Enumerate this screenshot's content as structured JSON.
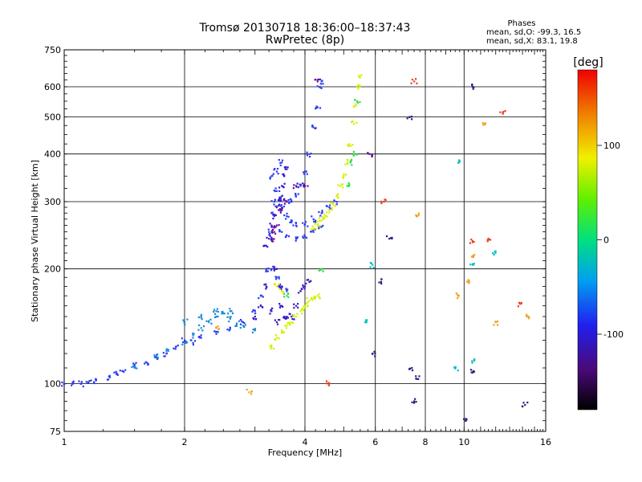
{
  "header": {
    "title_line1": "Tromsø 20130718 18:36:00–18:37:43",
    "title_line2": "RwPretec (8p)"
  },
  "stats": {
    "heading": "Phases",
    "o_line": "mean, sd,O: -99.3, 16.5",
    "x_line": "mean, sd,X:  83.1, 19.8"
  },
  "colorbar": {
    "label": "[deg]",
    "ticks": [
      {
        "value": 100,
        "label": "100"
      },
      {
        "value": 0,
        "label": "0"
      },
      {
        "value": -100,
        "label": "-100"
      }
    ],
    "range": [
      -180,
      180
    ]
  },
  "chart_data": {
    "type": "scatter",
    "title": "Tromsø 20130718 18:36:00–18:37:43",
    "subtitle": "RwPretec (8p)",
    "xlabel": "Frequency [MHz]",
    "ylabel": "Stationary phase Virtual Height [km]",
    "xscale": "log",
    "yscale": "log",
    "xlim": [
      1,
      16
    ],
    "ylim": [
      75,
      750
    ],
    "xticks": [
      1,
      2,
      4,
      6,
      8,
      10,
      16
    ],
    "yticks": [
      75,
      100,
      200,
      300,
      400,
      500,
      600,
      750
    ],
    "grid": true,
    "colorbar_label": "[deg]",
    "series": [
      {
        "phase_deg": -100,
        "color": "#2a3cf0",
        "points": [
          [
            1.0,
            100
          ],
          [
            1.05,
            100
          ],
          [
            1.1,
            100
          ],
          [
            1.15,
            101
          ],
          [
            1.2,
            102
          ],
          [
            1.3,
            104
          ],
          [
            1.35,
            106
          ],
          [
            1.4,
            108
          ],
          [
            1.5,
            112
          ],
          [
            1.6,
            114
          ],
          [
            1.7,
            117
          ],
          [
            1.8,
            120
          ],
          [
            1.9,
            125
          ],
          [
            2.0,
            130
          ],
          [
            2.1,
            128
          ],
          [
            2.2,
            132
          ],
          [
            2.4,
            135
          ],
          [
            2.6,
            140
          ],
          [
            2.8,
            145
          ],
          [
            3.0,
            155
          ],
          [
            3.1,
            170
          ],
          [
            3.2,
            200
          ],
          [
            3.25,
            250
          ],
          [
            3.3,
            280
          ],
          [
            3.35,
            300
          ],
          [
            3.4,
            320
          ],
          [
            3.5,
            310
          ],
          [
            3.6,
            300
          ],
          [
            3.7,
            300
          ],
          [
            3.8,
            310
          ],
          [
            3.9,
            330
          ],
          [
            4.0,
            360
          ],
          [
            4.1,
            400
          ],
          [
            4.2,
            470
          ],
          [
            4.3,
            530
          ],
          [
            4.35,
            600
          ],
          [
            4.4,
            620
          ],
          [
            3.5,
            290
          ],
          [
            3.6,
            275
          ],
          [
            3.7,
            265
          ],
          [
            3.8,
            260
          ],
          [
            4.0,
            262
          ],
          [
            4.2,
            270
          ],
          [
            4.4,
            280
          ],
          [
            4.6,
            290
          ],
          [
            4.8,
            300
          ],
          [
            3.5,
            250
          ],
          [
            3.6,
            245
          ],
          [
            3.8,
            240
          ],
          [
            4.0,
            243
          ],
          [
            4.2,
            250
          ],
          [
            4.4,
            258
          ],
          [
            3.3,
            200
          ],
          [
            3.4,
            190
          ],
          [
            3.5,
            180
          ],
          [
            3.6,
            175
          ],
          [
            3.3,
            350
          ],
          [
            3.4,
            360
          ],
          [
            3.5,
            380
          ]
        ]
      },
      {
        "phase_deg": -110,
        "color": "#3a18c8",
        "points": [
          [
            3.2,
            230
          ],
          [
            3.25,
            240
          ],
          [
            3.3,
            260
          ],
          [
            3.35,
            275
          ],
          [
            3.4,
            290
          ],
          [
            3.45,
            305
          ],
          [
            3.5,
            330
          ],
          [
            3.55,
            350
          ],
          [
            3.6,
            365
          ],
          [
            3.4,
            200
          ],
          [
            3.45,
            180
          ],
          [
            3.5,
            160
          ],
          [
            3.55,
            150
          ],
          [
            3.6,
            150
          ],
          [
            3.7,
            150
          ],
          [
            3.8,
            160
          ],
          [
            3.9,
            175
          ],
          [
            4.0,
            180
          ],
          [
            4.1,
            185
          ],
          [
            3.3,
            155
          ],
          [
            3.4,
            145
          ],
          [
            3.2,
            180
          ],
          [
            3.1,
            160
          ],
          [
            3.0,
            150
          ]
        ]
      },
      {
        "phase_deg": -75,
        "color": "#1a8ad8",
        "points": [
          [
            1.5,
            110
          ],
          [
            1.7,
            118
          ],
          [
            1.8,
            122
          ],
          [
            2.0,
            128
          ],
          [
            2.1,
            134
          ],
          [
            2.2,
            140
          ],
          [
            2.3,
            145
          ],
          [
            2.4,
            150
          ],
          [
            2.5,
            153
          ],
          [
            2.6,
            148
          ],
          [
            2.7,
            144
          ],
          [
            2.8,
            142
          ],
          [
            3.0,
            138
          ],
          [
            2.0,
            145
          ],
          [
            2.2,
            150
          ],
          [
            2.4,
            155
          ],
          [
            2.6,
            155
          ]
        ]
      },
      {
        "phase_deg": 90,
        "color": "#d4f000",
        "points": [
          [
            3.3,
            125
          ],
          [
            3.4,
            132
          ],
          [
            3.5,
            138
          ],
          [
            3.6,
            142
          ],
          [
            3.7,
            145
          ],
          [
            3.8,
            150
          ],
          [
            3.9,
            155
          ],
          [
            4.0,
            160
          ],
          [
            4.1,
            165
          ],
          [
            4.2,
            168
          ],
          [
            4.3,
            170
          ],
          [
            4.2,
            255
          ],
          [
            4.3,
            262
          ],
          [
            4.4,
            268
          ],
          [
            4.5,
            275
          ],
          [
            4.6,
            285
          ],
          [
            4.7,
            295
          ],
          [
            4.8,
            310
          ],
          [
            4.9,
            330
          ],
          [
            5.0,
            350
          ],
          [
            5.1,
            380
          ],
          [
            5.2,
            420
          ],
          [
            5.3,
            480
          ],
          [
            5.35,
            540
          ],
          [
            5.4,
            600
          ],
          [
            5.45,
            640
          ],
          [
            3.4,
            180
          ],
          [
            3.5,
            175
          ]
        ]
      },
      {
        "phase_deg": 40,
        "color": "#2ee04a",
        "points": [
          [
            5.2,
            380
          ],
          [
            5.3,
            400
          ],
          [
            5.1,
            330
          ],
          [
            4.4,
            200
          ],
          [
            3.6,
            170
          ],
          [
            5.4,
            550
          ]
        ]
      },
      {
        "phase_deg": -150,
        "color": "#6a0a9a",
        "points": [
          [
            3.3,
            240
          ],
          [
            3.35,
            250
          ],
          [
            3.4,
            260
          ],
          [
            3.5,
            285
          ],
          [
            3.6,
            300
          ],
          [
            4.0,
            330
          ],
          [
            3.8,
            330
          ],
          [
            4.3,
            620
          ],
          [
            5.8,
            400
          ]
        ]
      },
      {
        "phase_deg": 150,
        "color": "#e84020",
        "points": [
          [
            6.3,
            300
          ],
          [
            7.5,
            620
          ],
          [
            12.5,
            510
          ],
          [
            13.8,
            162
          ],
          [
            10.5,
            235
          ],
          [
            11.5,
            240
          ],
          [
            4.6,
            100
          ]
        ]
      },
      {
        "phase_deg": 120,
        "color": "#f0a020",
        "points": [
          [
            2.9,
            95
          ],
          [
            7.6,
            275
          ],
          [
            9.7,
            170
          ],
          [
            10.3,
            185
          ],
          [
            10.5,
            215
          ],
          [
            12.0,
            145
          ],
          [
            11.3,
            480
          ],
          [
            14.5,
            150
          ],
          [
            2.4,
            140
          ]
        ]
      },
      {
        "phase_deg": 0,
        "color": "#00c0c0",
        "points": [
          [
            5.7,
            145
          ],
          [
            9.5,
            110
          ],
          [
            10.5,
            205
          ],
          [
            10.6,
            115
          ],
          [
            11.8,
            220
          ],
          [
            9.7,
            380
          ],
          [
            5.9,
            205
          ]
        ]
      },
      {
        "phase_deg": -140,
        "color": "#202080",
        "points": [
          [
            6.2,
            185
          ],
          [
            7.4,
            110
          ],
          [
            7.5,
            90
          ],
          [
            7.6,
            103
          ],
          [
            10.1,
            80
          ],
          [
            10.5,
            107
          ],
          [
            14.2,
            88
          ],
          [
            6.5,
            240
          ],
          [
            5.9,
            120
          ],
          [
            10.5,
            600
          ],
          [
            7.3,
            500
          ]
        ]
      }
    ]
  }
}
